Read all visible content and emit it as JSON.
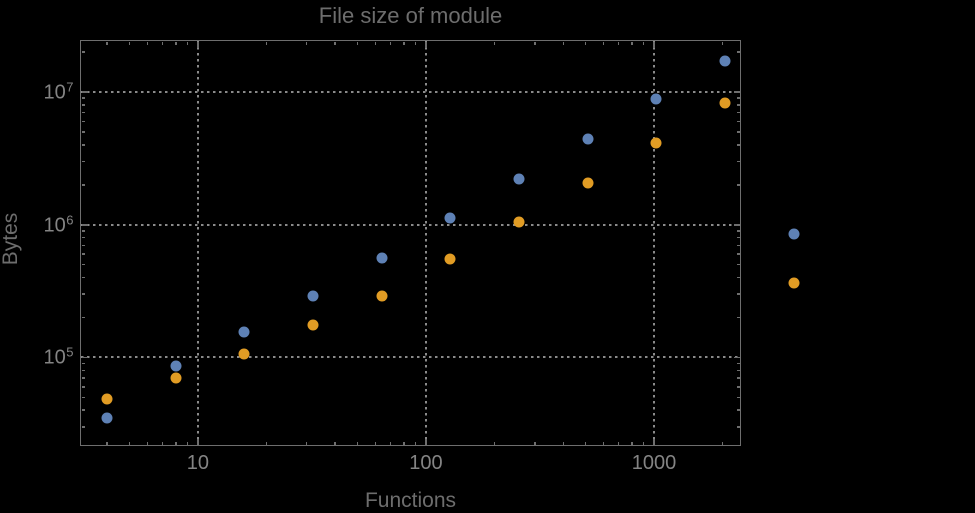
{
  "background": "#000000",
  "colors": {
    "frame": "#6e6e6e",
    "gridline": "#8a8a8a",
    "tick_label": "#848484",
    "title_label": "#6d6d6d",
    "series_blue": "#5E81B5",
    "series_orange": "#E19C24"
  },
  "chart_data": {
    "type": "scatter",
    "title": "File size of module",
    "xlabel": "Functions",
    "ylabel": "Bytes",
    "xscale": "log",
    "yscale": "log",
    "xlim": [
      3.04,
      2407
    ],
    "ylim": [
      21500,
      24700000
    ],
    "grid": "dotted",
    "legend_position": "none",
    "clip_points_to_frame": false,
    "x": [
      4,
      8,
      16,
      32,
      64,
      128,
      256,
      512,
      1024,
      2048,
      4096
    ],
    "series": [
      {
        "name": "blue-series",
        "color": "#5E81B5",
        "values": [
          35000,
          86000,
          155000,
          290000,
          560000,
          1130000,
          2220000,
          4450000,
          8800000,
          17300000,
          850000
        ]
      },
      {
        "name": "orange-series",
        "color": "#E19C24",
        "values": [
          49000,
          70000,
          106000,
          175000,
          290000,
          550000,
          1050000,
          2050000,
          4100000,
          8300000,
          365000
        ]
      }
    ],
    "x_ticks": {
      "major": [
        {
          "v": 10,
          "label": "10"
        },
        {
          "v": 100,
          "label": "100"
        },
        {
          "v": 1000,
          "label": "1000"
        }
      ],
      "minor": [
        4,
        5,
        6,
        7,
        8,
        9,
        20,
        30,
        40,
        50,
        60,
        70,
        80,
        90,
        200,
        300,
        400,
        500,
        600,
        700,
        800,
        900,
        2000
      ]
    },
    "y_ticks": {
      "major": [
        {
          "v": 100000,
          "base": "10",
          "exp": "5"
        },
        {
          "v": 1000000,
          "base": "10",
          "exp": "6"
        },
        {
          "v": 10000000,
          "base": "10",
          "exp": "7"
        }
      ],
      "minor": [
        30000,
        40000,
        50000,
        60000,
        70000,
        80000,
        90000,
        200000,
        300000,
        400000,
        500000,
        600000,
        700000,
        800000,
        900000,
        2000000,
        3000000,
        4000000,
        5000000,
        6000000,
        7000000,
        8000000,
        9000000,
        20000000
      ]
    },
    "gridlines": {
      "x": [
        10,
        100,
        1000
      ],
      "y": [
        100000,
        1000000,
        10000000
      ]
    }
  }
}
